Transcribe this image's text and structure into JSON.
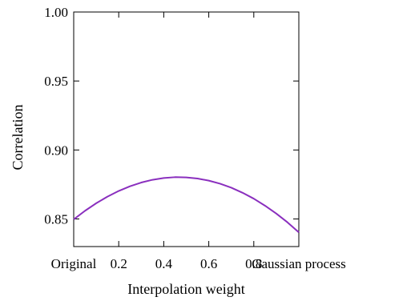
{
  "chart_data": {
    "type": "line",
    "xlabel": "Interpolation weight",
    "ylabel": "Correlation",
    "xlim": [
      0,
      1
    ],
    "ylim": [
      0.83,
      1.0
    ],
    "x_ticks": [
      {
        "value": 0,
        "label": "Original"
      },
      {
        "value": 0.2,
        "label": "0.2"
      },
      {
        "value": 0.4,
        "label": "0.4"
      },
      {
        "value": 0.6,
        "label": "0.6"
      },
      {
        "value": 0.8,
        "label": "0.8"
      },
      {
        "value": 1,
        "label": "Gaussian process"
      }
    ],
    "y_ticks": [
      {
        "value": 0.85,
        "label": "0.85"
      },
      {
        "value": 0.9,
        "label": "0.90"
      },
      {
        "value": 0.95,
        "label": "0.95"
      },
      {
        "value": 1.0,
        "label": "1.00"
      }
    ],
    "grid": false,
    "series": [
      {
        "color": "#8a2fbe",
        "x": [
          0,
          0.05,
          0.1,
          0.15,
          0.2,
          0.25,
          0.3,
          0.35,
          0.4,
          0.45,
          0.5,
          0.55,
          0.6,
          0.65,
          0.7,
          0.75,
          0.8,
          0.85,
          0.9,
          0.95,
          1.0
        ],
        "y": [
          0.8497,
          0.8559,
          0.8614,
          0.8662,
          0.8703,
          0.8737,
          0.8764,
          0.8784,
          0.8797,
          0.8803,
          0.8801,
          0.8793,
          0.8778,
          0.8756,
          0.8727,
          0.869,
          0.8647,
          0.8596,
          0.8539,
          0.8475,
          0.8403
        ]
      }
    ]
  }
}
